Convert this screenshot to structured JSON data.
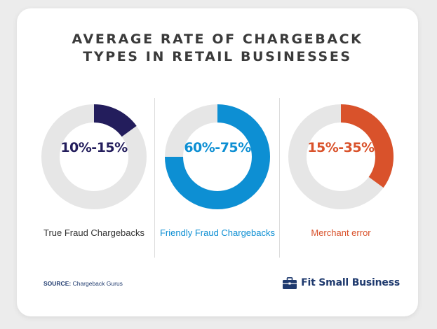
{
  "chart_data": {
    "type": "pie",
    "title": "AVERAGE RATE OF CHARGEBACK TYPES IN RETAIL BUSINESSES",
    "charts": [
      {
        "label": "10%-15%",
        "caption": "True Fraud Chargebacks",
        "range": [
          10,
          15
        ],
        "fill_percent": 15,
        "color": "#231d5c",
        "text_color": "#231d5c",
        "caption_color": "#333333"
      },
      {
        "label": "60%-75%",
        "caption": "Friendly Fraud Chargebacks",
        "range": [
          60,
          75
        ],
        "fill_percent": 75,
        "color": "#0d8fd3",
        "text_color": "#0d8fd3",
        "caption_color": "#0d8fd3"
      },
      {
        "label": "15%-35%",
        "caption": "Merchant error",
        "range": [
          15,
          35
        ],
        "fill_percent": 35,
        "color": "#d9522b",
        "text_color": "#d9522b",
        "caption_color": "#d9522b"
      }
    ],
    "track_color": "#e6e6e6"
  },
  "header": {
    "title_line1": "AVERAGE RATE OF CHARGEBACK",
    "title_line2": "TYPES IN RETAIL BUSINESSES"
  },
  "footer": {
    "source_label": "SOURCE:",
    "source_value": "Chargeback Gurus",
    "brand": "Fit Small Business",
    "brand_icon": "briefcase-icon"
  }
}
